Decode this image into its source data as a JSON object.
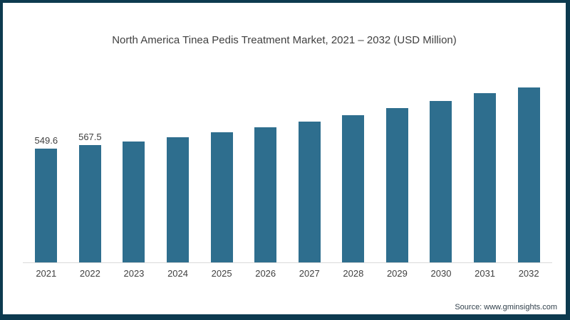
{
  "frame": {
    "border_color": "#0d3a4f",
    "background": "#ffffff"
  },
  "chart_data": {
    "type": "bar",
    "title": "North America Tinea Pedis Treatment Market, 2021 – 2032 (USD Million)",
    "categories": [
      "2021",
      "2022",
      "2023",
      "2024",
      "2025",
      "2026",
      "2027",
      "2028",
      "2029",
      "2030",
      "2031",
      "2032"
    ],
    "values": [
      549.6,
      567.5,
      585,
      604,
      630,
      653,
      682,
      712,
      746,
      779,
      818,
      859
    ],
    "data_labels": [
      "549.6",
      "567.5",
      "",
      "",
      "",
      "",
      "",
      "",
      "",
      "",
      "",
      ""
    ],
    "bar_color": "#2e6e8e",
    "axis_line_color": "#d9d9d9",
    "label_color": "#404040",
    "ylim": [
      0,
      880
    ],
    "grid": false,
    "legend": false,
    "xlabel": "",
    "ylabel": ""
  },
  "footer": {
    "source_label": "Source: www.gminsights.com"
  }
}
